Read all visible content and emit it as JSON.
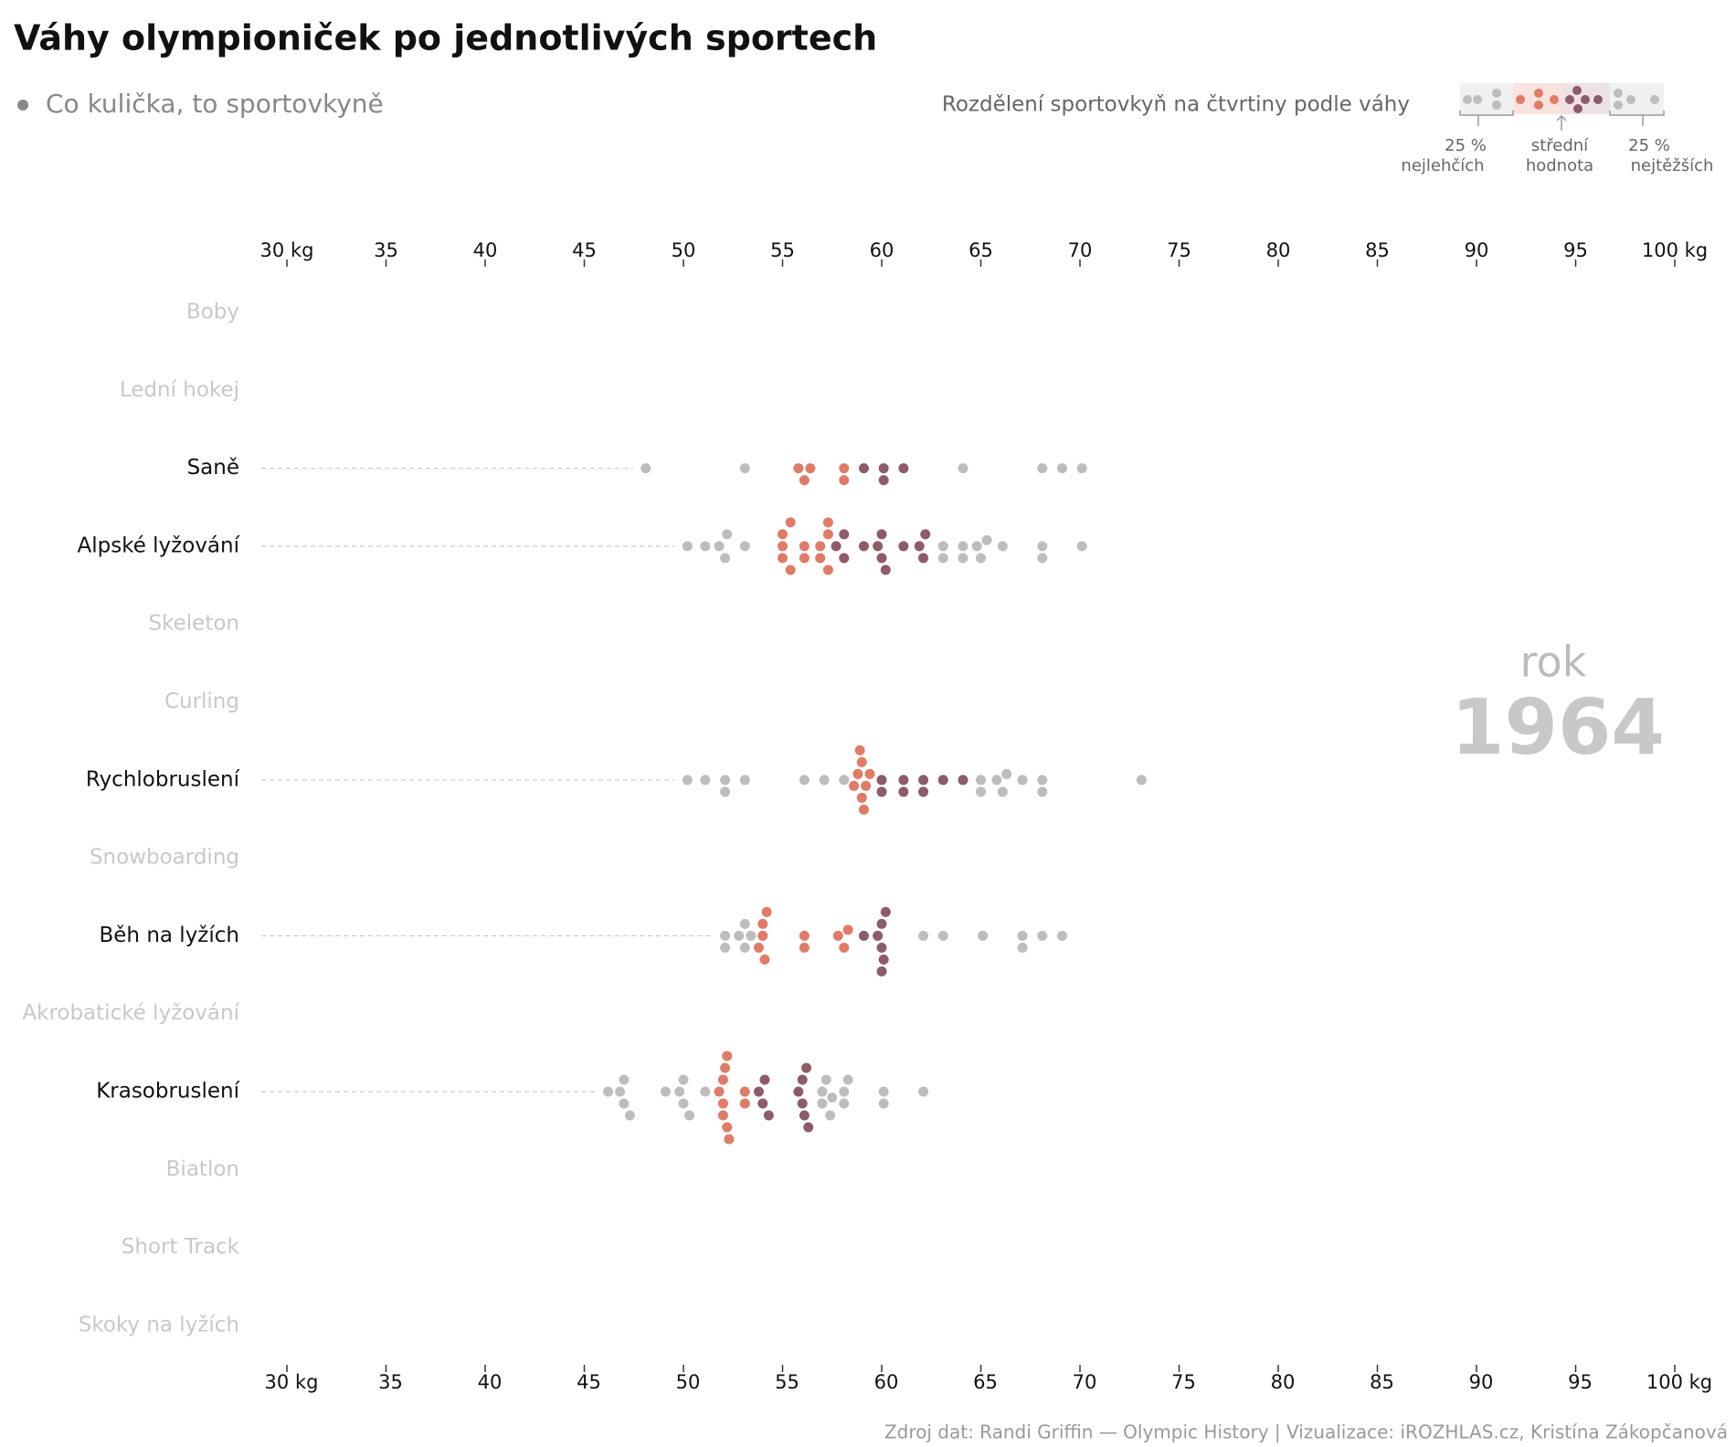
{
  "chart_data": {
    "type": "beeswarm",
    "title": "Váhy olympioniček po jednotlivých sportech",
    "legend_text": "Co kulička, to sportovkyně",
    "quartile_title": "Rozdělení sportovkyň na čtvrtiny podle váhy",
    "quartile_labels": [
      [
        "25 %",
        "nejlehčích"
      ],
      [
        "střední",
        "hodnota"
      ],
      [
        "25 %",
        "nejtěžších"
      ]
    ],
    "quarter_colors": [
      "#bdbdbd",
      "#e07b67",
      "#8e5b68",
      "#bdbdbd"
    ],
    "year_label": "rok",
    "year": "1964",
    "source": "Zdroj dat: Randi Griffin — Olympic History  |  Vizualizace: iROZHLAS.cz, Kristína Zákopčanová",
    "xlim": [
      30,
      100
    ],
    "xticks": [
      {
        "value": 30,
        "label": "30 kg"
      },
      35,
      40,
      45,
      50,
      55,
      60,
      65,
      70,
      75,
      80,
      85,
      90,
      95,
      {
        "value": 100,
        "label": "100 kg"
      }
    ],
    "sports": [
      {
        "name": "Boby"
      },
      {
        "name": "Lední hokej"
      },
      {
        "name": "Saně",
        "quarters": [
          [
            48.1,
            53.1
          ],
          [
            55.8,
            56.1,
            56.4,
            58.1,
            58.1
          ],
          [
            59.1,
            60.1,
            60.1,
            61.1
          ],
          [
            64.1,
            68.1,
            69.1,
            70.1
          ]
        ]
      },
      {
        "name": "Alpské lyžování",
        "quarters": [
          [
            50.2,
            51.1,
            51.8,
            52.1,
            52.2,
            53.1
          ],
          [
            55,
            55,
            55,
            55.4,
            55.4,
            56.1,
            56.1,
            56.9,
            56.9,
            57.3,
            57.3,
            57.3
          ],
          [
            57.7,
            58.1,
            58.1,
            59.1,
            59.8,
            60,
            60,
            60.2,
            61.1,
            61.9,
            62.1,
            62.2
          ],
          [
            63.1,
            63.1,
            64.1,
            64.1,
            64.8,
            65,
            65.3,
            66.1,
            68.1,
            68.1,
            70.1
          ]
        ]
      },
      {
        "name": "Skeleton"
      },
      {
        "name": "Curling"
      },
      {
        "name": "Rychlobruslení",
        "quarters": [
          [
            50.2,
            51.1,
            52.1,
            52.1,
            53.1,
            56.1,
            57.1,
            58.1
          ],
          [
            58.6,
            58.8,
            59,
            59,
            59.2,
            59.4,
            59.1,
            58.9
          ],
          [
            60,
            60,
            61.1,
            61.1,
            62.1,
            62.1,
            63.1,
            64.1
          ],
          [
            65,
            65,
            65.8,
            66.1,
            66.3,
            67.1,
            68.1,
            68.1,
            73.1
          ]
        ]
      },
      {
        "name": "Snowboarding"
      },
      {
        "name": "Běh na lyžích",
        "quarters": [
          [
            52.1,
            52.1,
            52.8,
            53.1,
            53.1,
            53.4
          ],
          [
            53.8,
            54,
            54,
            54.1,
            54.2,
            56.1,
            56.1,
            57.8,
            58.1,
            58.3
          ],
          [
            59.1,
            59.8,
            60,
            60,
            60.1,
            60.2,
            60
          ],
          [
            62.1,
            63.1,
            65.1,
            67.1,
            67.1,
            68.1,
            69.1
          ]
        ]
      },
      {
        "name": "Akrobatické lyžování"
      },
      {
        "name": "Krasobruslení",
        "quarters": [
          [
            46.2,
            46.8,
            47,
            47,
            47.3,
            49.1,
            49.8,
            50,
            50,
            50.3,
            51.1
          ],
          [
            51.8,
            52,
            52,
            52,
            52.1,
            52.2,
            52.2,
            52.3,
            53.1,
            53.1
          ],
          [
            53.8,
            54,
            54.1,
            54.3,
            55.8,
            56,
            56,
            56.1,
            56.2,
            56.3
          ],
          [
            57,
            57,
            57.2,
            57.4,
            57.5,
            58.1,
            58.1,
            58.3,
            60.1,
            60.1,
            62.1
          ]
        ]
      },
      {
        "name": "Biatlon"
      },
      {
        "name": "Short Track"
      },
      {
        "name": "Skoky na lyžích"
      }
    ]
  }
}
